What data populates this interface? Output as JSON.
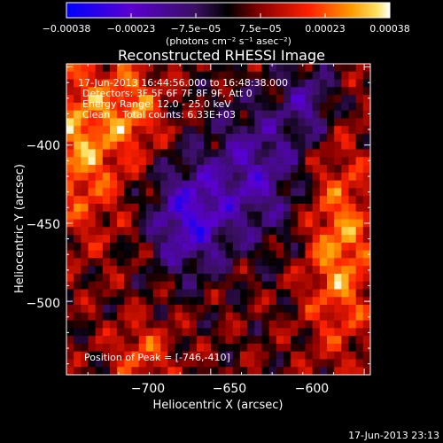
{
  "chart_data": {
    "type": "heatmap",
    "title": "Reconstructed RHESSI Image",
    "xlabel": "Heliocentric X (arcsec)",
    "ylabel": "Heliocentric Y (arcsec)",
    "xlim": [
      -747,
      -648
    ],
    "ylim": [
      -547,
      -348
    ],
    "x_ticks": [
      -700,
      -650,
      -600
    ],
    "x_tick_labels": [
      "−700",
      "−650",
      "−600"
    ],
    "y_ticks": [
      -400,
      -450,
      -500
    ],
    "y_tick_labels": [
      "−400",
      "−450",
      "−500"
    ],
    "colorbar": {
      "range": [
        -0.00038,
        0.00038
      ],
      "tick_labels": [
        "−0.00038",
        "−0.00023",
        "−7.5e−05",
        "7.5e−05",
        "0.00023",
        "0.00038"
      ],
      "unit_label": "(photons cm⁻² s⁻¹ asec⁻²)",
      "colors": [
        "#0000ff",
        "#5a00d0",
        "#6a1fa0",
        "#000000",
        "#8a0000",
        "#ff0000",
        "#ff8000",
        "#ffd000",
        "#ffffff"
      ]
    },
    "info_lines": [
      "17-Jun-2013 16:44:56.000 to 16:48:38.000",
      "Detectors: 3F 5F 6F 7F 8F 9F, Att 0",
      "Energy Range: 12.0 - 25.0 keV",
      "Clean    Total counts: 6.33E+03"
    ],
    "peak_label": "Position of Peak = [-746,-410]",
    "timestamp": "17-Jun-2013 23:13",
    "image_grid": {
      "rows": 40,
      "cols": 42,
      "description": "2D flux grid; values normalized to colorbar range"
    }
  }
}
